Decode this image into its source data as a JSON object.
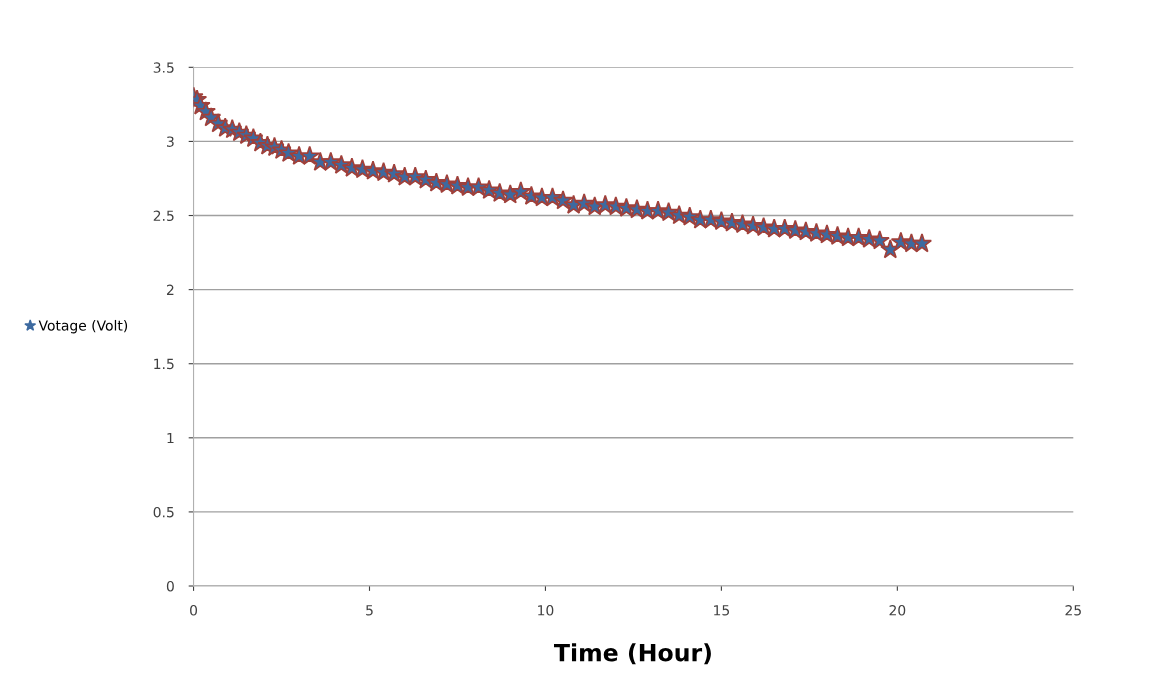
{
  "chart_data": {
    "type": "scatter",
    "xlabel": "Time (Hour)",
    "series": [
      {
        "name": "Votage (Volt)",
        "color": "#3d6aa0",
        "x": [
          0,
          0.1,
          0.2,
          0.35,
          0.5,
          0.7,
          0.9,
          1.1,
          1.3,
          1.5,
          1.7,
          1.9,
          2.1,
          2.3,
          2.5,
          2.7,
          3.0,
          3.3,
          3.6,
          3.9,
          4.2,
          4.5,
          4.8,
          5.1,
          5.4,
          5.7,
          6.0,
          6.3,
          6.6,
          6.9,
          7.2,
          7.5,
          7.8,
          8.1,
          8.4,
          8.7,
          9.0,
          9.3,
          9.6,
          9.9,
          10.2,
          10.5,
          10.8,
          11.1,
          11.4,
          11.7,
          12.0,
          12.3,
          12.6,
          12.9,
          13.2,
          13.5,
          13.8,
          14.1,
          14.4,
          14.7,
          15.0,
          15.3,
          15.6,
          15.9,
          16.2,
          16.5,
          16.8,
          17.1,
          17.4,
          17.7,
          18.0,
          18.3,
          18.6,
          18.9,
          19.2,
          19.5,
          19.8,
          20.1,
          20.4,
          20.7
        ],
        "values": [
          3.3,
          3.28,
          3.24,
          3.2,
          3.16,
          3.12,
          3.09,
          3.08,
          3.06,
          3.04,
          3.02,
          2.99,
          2.97,
          2.96,
          2.94,
          2.92,
          2.9,
          2.9,
          2.86,
          2.86,
          2.84,
          2.82,
          2.81,
          2.8,
          2.79,
          2.78,
          2.76,
          2.76,
          2.74,
          2.72,
          2.71,
          2.7,
          2.69,
          2.69,
          2.67,
          2.65,
          2.64,
          2.66,
          2.63,
          2.62,
          2.62,
          2.6,
          2.57,
          2.58,
          2.56,
          2.57,
          2.56,
          2.55,
          2.54,
          2.53,
          2.53,
          2.52,
          2.5,
          2.49,
          2.47,
          2.47,
          2.46,
          2.45,
          2.44,
          2.43,
          2.42,
          2.41,
          2.41,
          2.4,
          2.39,
          2.38,
          2.37,
          2.36,
          2.35,
          2.35,
          2.34,
          2.33,
          2.27,
          2.32,
          2.31,
          2.31
        ]
      }
    ],
    "xlim": [
      0,
      25
    ],
    "xticks": [
      0,
      5,
      10,
      15,
      20,
      25
    ],
    "ylim": [
      0,
      3.5
    ],
    "yticks": [
      0,
      0.5,
      1,
      1.5,
      2,
      2.5,
      3,
      3.5
    ],
    "grid": "y",
    "legend": "left",
    "marker": "star"
  }
}
